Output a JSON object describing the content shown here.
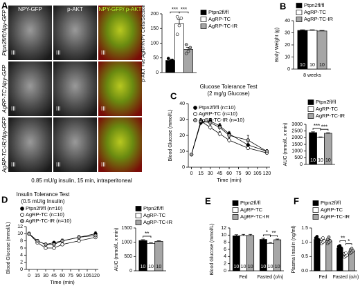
{
  "microscopy": {
    "panel_label": "A",
    "columns": [
      "NPY-GFP",
      "p-AKT",
      "NPY-GFP/ p-AKT"
    ],
    "rows": [
      "Ptpn2fl/fl;Npy-GFP",
      "AgRP-TC;Npy-GFP",
      "AgRP-TC-IR;Npy-GFP"
    ],
    "region_label": "III",
    "caption": "0.85 mU/g insulin, 15 min, intraperitoneal"
  },
  "chart_data": [
    {
      "type": "bar",
      "y_label": "p-AKT +ve AgRP/NPY Cells/Section",
      "categories": [
        null
      ],
      "series": [
        {
          "name": "Ptpn2fl/fl",
          "color": "#000000",
          "values": [
            41
          ],
          "errors": [
            4
          ],
          "points": [
            [
              35,
              38,
              42,
              48
            ]
          ]
        },
        {
          "name": "AgRP-TC",
          "color": "#ffffff",
          "values": [
            166
          ],
          "errors": [
            15
          ],
          "points": [
            [
              130,
              160,
              185,
              190
            ]
          ]
        },
        {
          "name": "AgRP-TC-IR",
          "color": "#a6a6a6",
          "values": [
            79
          ],
          "errors": [
            7
          ],
          "points": [
            [
              65,
              72,
              85,
              95
            ]
          ]
        }
      ],
      "ylim": [
        0,
        200
      ],
      "yticks": [
        0,
        50,
        100,
        150,
        200
      ],
      "significance": [
        {
          "label": "***",
          "between": [
            "Ptpn2fl/fl",
            "AgRP-TC"
          ]
        },
        {
          "label": "***",
          "between": [
            "AgRP-TC",
            "AgRP-TC-IR"
          ]
        }
      ]
    },
    {
      "type": "bar",
      "panel": "B",
      "y_label": "Body Weight (g)",
      "categories": [
        "8 weeks"
      ],
      "series": [
        {
          "name": "Ptpn2fl/fl",
          "color": "#000000",
          "values": [
            32
          ],
          "errors": [
            0.5
          ],
          "n": [
            10
          ]
        },
        {
          "name": "AgRP-TC",
          "color": "#ffffff",
          "values": [
            32
          ],
          "errors": [
            0.5
          ],
          "n": [
            10
          ]
        },
        {
          "name": "AgRP-TC-IR",
          "color": "#a6a6a6",
          "values": [
            31.5
          ],
          "errors": [
            0.5
          ],
          "n": [
            10
          ]
        }
      ],
      "ylim": [
        0,
        40
      ],
      "yticks": [
        0,
        10,
        20,
        30,
        40
      ]
    },
    {
      "type": "line",
      "panel": "C",
      "title": "Glucose Tolerance Test",
      "subtitle": "(2 mg/g Glucose)",
      "x_label": "Time (min)",
      "y_label": "Blood Glucose (mmol/L)",
      "x": [
        0,
        15,
        30,
        45,
        60,
        90,
        120
      ],
      "series": [
        {
          "name": "Ptpn2fl/fl (n=10)",
          "color": "#000000",
          "values": [
            8,
            28,
            29,
            26,
            21,
            14,
            10
          ],
          "errors": [
            0.5,
            1.5,
            1.5,
            1.5,
            1.5,
            2,
            1
          ]
        },
        {
          "name": "AgRP-TC (n=10)",
          "color": "#ffffff",
          "values": [
            8,
            29,
            25,
            21,
            17,
            12,
            9
          ],
          "errors": [
            0.5,
            1.5,
            1.5,
            1.5,
            1.5,
            1,
            1
          ]
        },
        {
          "name": "AgRP-TC-IR (n=10)",
          "color": "#a6a6a6",
          "values": [
            8,
            29,
            28,
            25,
            20,
            17,
            10
          ],
          "errors": [
            0.5,
            1.5,
            1.5,
            1.5,
            2,
            3,
            1
          ]
        }
      ],
      "xlim": [
        -5,
        125
      ],
      "xticks": [
        0,
        15,
        30,
        45,
        60,
        75,
        90,
        105,
        120
      ],
      "ylim": [
        0,
        40
      ],
      "yticks": [
        0,
        10,
        20,
        30,
        40
      ]
    },
    {
      "type": "bar",
      "y_label": "AUC (mmol/L x min)",
      "categories": [
        null
      ],
      "series": [
        {
          "name": "Ptpn2fl/fl",
          "color": "#000000",
          "values": [
            2380
          ],
          "errors": [
            60
          ],
          "n": [
            10
          ]
        },
        {
          "name": "AgRP-TC",
          "color": "#ffffff",
          "values": [
            2020
          ],
          "errors": [
            40
          ],
          "n": [
            10
          ]
        },
        {
          "name": "AgRP-TC-IR",
          "color": "#a6a6a6",
          "values": [
            2330
          ],
          "errors": [
            40
          ],
          "n": [
            10
          ]
        }
      ],
      "ylim": [
        0,
        3000
      ],
      "yticks": [
        0,
        500,
        1000,
        1500,
        2000,
        2500,
        3000
      ],
      "significance": [
        {
          "label": "***",
          "between": [
            "Ptpn2fl/fl",
            "AgRP-TC"
          ]
        },
        {
          "label": "***",
          "between": [
            "AgRP-TC",
            "AgRP-TC-IR"
          ]
        }
      ]
    },
    {
      "type": "line",
      "panel": "D",
      "title": "Insulin Tolerance Test",
      "subtitle": "(0.5 mU/g Insulin)",
      "x_label": "Time (min)",
      "y_label": "Blood Glucose (mmol/L)",
      "x": [
        0,
        15,
        30,
        45,
        60,
        90,
        120
      ],
      "series": [
        {
          "name": "Ptpn2fl/fl (n=10)",
          "color": "#000000",
          "values": [
            10,
            8,
            7,
            7.5,
            8,
            9,
            10
          ],
          "errors": [
            0.4,
            0.4,
            0.4,
            0.4,
            0.5,
            0.5,
            0.6
          ]
        },
        {
          "name": "AgRP-TC (n=10)",
          "color": "#ffffff",
          "values": [
            10,
            7.5,
            6,
            6,
            7,
            8,
            9
          ],
          "errors": [
            0.4,
            0.4,
            0.4,
            0.4,
            0.5,
            0.5,
            0.5
          ]
        },
        {
          "name": "AgRP-TC-IR (n=10)",
          "color": "#a6a6a6",
          "values": [
            10,
            8,
            7,
            7,
            8,
            9,
            9.5
          ],
          "errors": [
            0.4,
            0.4,
            0.4,
            0.4,
            0.5,
            0.5,
            0.5
          ]
        }
      ],
      "xlim": [
        -5,
        125
      ],
      "xticks": [
        0,
        15,
        30,
        45,
        60,
        75,
        90,
        105,
        120
      ],
      "ylim": [
        0,
        12
      ],
      "yticks": [
        0,
        2,
        4,
        6,
        8,
        10,
        12
      ]
    },
    {
      "type": "bar",
      "y_label": "AUC (mmol/L x min)",
      "categories": [
        null
      ],
      "series": [
        {
          "name": "Ptpn2fl/fl",
          "color": "#000000",
          "values": [
            1060
          ],
          "errors": [
            30
          ],
          "n": [
            10
          ]
        },
        {
          "name": "AgRP-TC",
          "color": "#ffffff",
          "values": [
            960
          ],
          "errors": [
            25
          ],
          "n": [
            10
          ]
        },
        {
          "name": "AgRP-TC-IR",
          "color": "#a6a6a6",
          "values": [
            1030
          ],
          "errors": [
            25
          ],
          "n": [
            10
          ]
        }
      ],
      "ylim": [
        0,
        1500
      ],
      "yticks": [
        0,
        500,
        1000,
        1500
      ],
      "significance": [
        {
          "label": "**",
          "between": [
            "Ptpn2fl/fl",
            "AgRP-TC"
          ]
        }
      ]
    },
    {
      "type": "bar",
      "panel": "E",
      "y_label": "Blood Glucose (mmol/L)",
      "categories": [
        "Fed",
        "Fasted (o/n)"
      ],
      "series": [
        {
          "name": "Ptpn2fl/fl",
          "color": "#000000",
          "values": [
            9.8,
            8.8
          ],
          "errors": [
            0.3,
            0.3
          ],
          "n": [
            10,
            10
          ]
        },
        {
          "name": "AgRP-TC",
          "color": "#ffffff",
          "values": [
            9.9,
            7.7
          ],
          "errors": [
            0.3,
            0.2
          ],
          "n": [
            10,
            10
          ]
        },
        {
          "name": "AgRP-TC-IR",
          "color": "#a6a6a6",
          "values": [
            9.9,
            8.7
          ],
          "errors": [
            0.3,
            0.2
          ],
          "n": [
            10,
            10
          ]
        }
      ],
      "ylim": [
        0,
        12
      ],
      "yticks": [
        0,
        2,
        4,
        6,
        8,
        10,
        12
      ],
      "significance": [
        {
          "label": "*",
          "between": [
            "Ptpn2fl/fl",
            "AgRP-TC"
          ],
          "category": "Fasted (o/n)"
        },
        {
          "label": "**",
          "between": [
            "AgRP-TC",
            "AgRP-TC-IR"
          ],
          "category": "Fasted (o/n)"
        }
      ]
    },
    {
      "type": "bar",
      "panel": "F",
      "y_label": "Plasma Insulin (ng/ml)",
      "categories": [
        "Fed",
        "Fasted (o/n)"
      ],
      "series": [
        {
          "name": "Ptpn2fl/fl",
          "color": "#000000",
          "values": [
            1.1,
            0.8
          ],
          "errors": [
            0.05,
            0.04
          ],
          "points": [
            [
              1.0,
              1.05,
              1.1,
              1.15,
              1.2
            ],
            [
              0.72,
              0.78,
              0.8,
              0.85,
              0.88
            ]
          ]
        },
        {
          "name": "AgRP-TC",
          "color": "#ffffff",
          "values": [
            1.05,
            0.55
          ],
          "errors": [
            0.06,
            0.04
          ],
          "points": [
            [
              0.95,
              1.0,
              1.05,
              1.1,
              1.15
            ],
            [
              0.48,
              0.52,
              0.55,
              0.6,
              0.62
            ]
          ]
        },
        {
          "name": "AgRP-TC-IR",
          "color": "#a6a6a6",
          "values": [
            1.05,
            0.7
          ],
          "errors": [
            0.06,
            0.04
          ],
          "points": [
            [
              0.95,
              1.0,
              1.05,
              1.1,
              1.18
            ],
            [
              0.62,
              0.66,
              0.7,
              0.74,
              0.78
            ]
          ]
        }
      ],
      "ylim": [
        0,
        1.5
      ],
      "yticks": [
        {
          "value": 0,
          "label": "0.0"
        },
        {
          "value": 0.5,
          "label": "0.5"
        },
        {
          "value": 1,
          "label": "1.0"
        },
        {
          "value": 1.5,
          "label": "1.5"
        }
      ],
      "significance": [
        {
          "label": "**",
          "between": [
            "Ptpn2fl/fl",
            "AgRP-TC"
          ],
          "category": "Fasted (o/n)"
        },
        {
          "label": "*",
          "between": [
            "AgRP-TC",
            "AgRP-TC-IR"
          ],
          "category": "Fasted (o/n)"
        }
      ]
    }
  ]
}
